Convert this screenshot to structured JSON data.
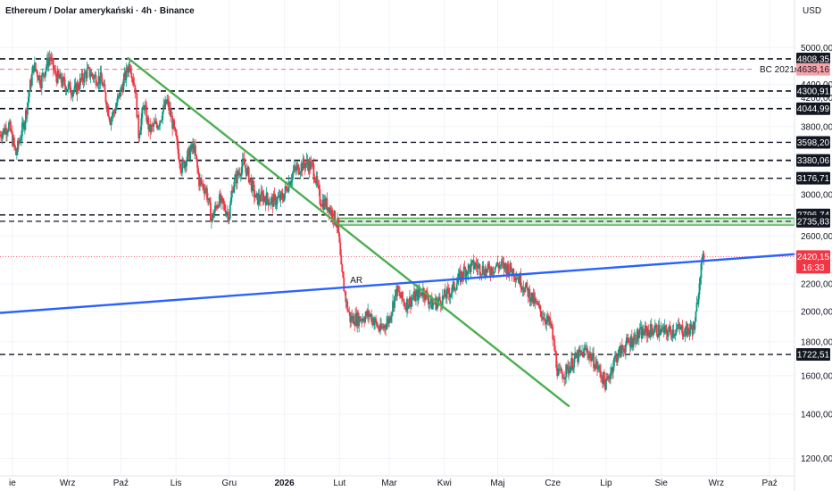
{
  "header": {
    "title": "Ethereum / Dolar amerykański · 4h · Binance",
    "currency": "USD"
  },
  "chart_data": {
    "type": "candlestick",
    "y_scale": "log",
    "ylim": [
      1130,
      5900
    ],
    "xlim": [
      "2025-07-25",
      "2026-10-15"
    ],
    "y_ticks": [
      {
        "value": 5000,
        "label": "5000,00"
      },
      {
        "value": 4400,
        "label": "4400,00"
      },
      {
        "value": 4200,
        "label": "4200,00"
      },
      {
        "value": 3800,
        "label": "3800,00"
      },
      {
        "value": 3000,
        "label": "3000,00"
      },
      {
        "value": 2600,
        "label": "2600,00"
      },
      {
        "value": 2200,
        "label": "2200,00"
      },
      {
        "value": 2000,
        "label": "2000,00"
      },
      {
        "value": 1800,
        "label": "1800,00"
      },
      {
        "value": 1600,
        "label": "1600,00"
      },
      {
        "value": 1400,
        "label": "1400,00"
      },
      {
        "value": 1200,
        "label": "1200,00"
      }
    ],
    "x_ticks": [
      {
        "date": "2025-08-01",
        "label": "ie",
        "bold": false
      },
      {
        "date": "2025-09-01",
        "label": "Wrz",
        "bold": false
      },
      {
        "date": "2025-10-01",
        "label": "Paź",
        "bold": false
      },
      {
        "date": "2025-11-01",
        "label": "Lis",
        "bold": false
      },
      {
        "date": "2025-12-01",
        "label": "Gru",
        "bold": false
      },
      {
        "date": "2026-01-01",
        "label": "2026",
        "bold": true
      },
      {
        "date": "2026-02-01",
        "label": "Lut",
        "bold": false
      },
      {
        "date": "2026-03-01",
        "label": "Mar",
        "bold": false
      },
      {
        "date": "2026-04-01",
        "label": "Kwi",
        "bold": false
      },
      {
        "date": "2026-05-01",
        "label": "Maj",
        "bold": false
      },
      {
        "date": "2026-06-01",
        "label": "Cze",
        "bold": false
      },
      {
        "date": "2026-07-01",
        "label": "Lip",
        "bold": false
      },
      {
        "date": "2026-08-01",
        "label": "Sie",
        "bold": false
      },
      {
        "date": "2026-09-01",
        "label": "Wrz",
        "bold": false
      },
      {
        "date": "2026-10-01",
        "label": "Paź",
        "bold": false
      }
    ],
    "horizontal_levels": [
      {
        "value": 4808.35,
        "label": "4808,35",
        "style": "dashed",
        "weight": 1.6
      },
      {
        "value": 4300.91,
        "label": "4300,91",
        "style": "dashed",
        "weight": 1.6
      },
      {
        "value": 4044.99,
        "label": "4044,99",
        "style": "dashed",
        "weight": 1.6
      },
      {
        "value": 3598.2,
        "label": "3598,20",
        "style": "dashed",
        "weight": 1.4
      },
      {
        "value": 3380.06,
        "label": "3380,06",
        "style": "dashed",
        "weight": 1.8
      },
      {
        "value": 3176.71,
        "label": "3176,71",
        "style": "dashed",
        "weight": 1.4
      },
      {
        "value": 2796.74,
        "label": "2796,74",
        "style": "dashed",
        "weight": 1.6
      },
      {
        "value": 2735.83,
        "label": "2735,83",
        "style": "dashed",
        "weight": 1.2
      },
      {
        "value": 1722.51,
        "label": "1722,51",
        "style": "dashed",
        "weight": 1.4
      }
    ],
    "bc_level": {
      "value": 4638.16,
      "label": "4638,16",
      "name": "BC 2021r",
      "color": "#f06d7a",
      "badge_color": "#f7a1a9"
    },
    "current_price": {
      "value": 2420.15,
      "label": "2420,15",
      "countdown": "16:33",
      "color": "#f23645"
    },
    "zone": {
      "from": 2700,
      "to": 2765,
      "start": "2026-01-31",
      "color": "#4caf50"
    },
    "trendlines": [
      {
        "name": "green-downtrend",
        "color": "#4caf50",
        "points": [
          [
            "2025-10-05",
            4820
          ],
          [
            "2026-06-10",
            1440
          ]
        ]
      },
      {
        "name": "blue-support",
        "color": "#2962ff",
        "points": [
          [
            "2025-07-25",
            1990
          ],
          [
            "2026-10-15",
            2440
          ]
        ]
      }
    ],
    "annotations": [
      {
        "text": "AR",
        "date": "2026-02-05",
        "value": 2195
      }
    ],
    "colors": {
      "up": "#089981",
      "down": "#f23645",
      "grid": "#f0f3fa",
      "axis_text": "#131722"
    },
    "price_path": [
      [
        "2025-07-25",
        3700
      ],
      [
        "2025-07-30",
        3820
      ],
      [
        "2025-08-03",
        3450
      ],
      [
        "2025-08-08",
        3900
      ],
      [
        "2025-08-13",
        4700
      ],
      [
        "2025-08-17",
        4450
      ],
      [
        "2025-08-22",
        4850
      ],
      [
        "2025-08-25",
        4550
      ],
      [
        "2025-08-31",
        4380
      ],
      [
        "2025-09-05",
        4300
      ],
      [
        "2025-09-12",
        4600
      ],
      [
        "2025-09-17",
        4500
      ],
      [
        "2025-09-20",
        4480
      ],
      [
        "2025-09-25",
        3900
      ],
      [
        "2025-09-28",
        4050
      ],
      [
        "2025-10-03",
        4480
      ],
      [
        "2025-10-06",
        4750
      ],
      [
        "2025-10-09",
        4350
      ],
      [
        "2025-10-11",
        3700
      ],
      [
        "2025-10-14",
        4100
      ],
      [
        "2025-10-17",
        3750
      ],
      [
        "2025-10-22",
        3850
      ],
      [
        "2025-10-27",
        4150
      ],
      [
        "2025-10-30",
        3850
      ],
      [
        "2025-11-04",
        3300
      ],
      [
        "2025-11-08",
        3450
      ],
      [
        "2025-11-11",
        3550
      ],
      [
        "2025-11-14",
        3150
      ],
      [
        "2025-11-18",
        3050
      ],
      [
        "2025-11-21",
        2750
      ],
      [
        "2025-11-25",
        2950
      ],
      [
        "2025-12-01",
        2800
      ],
      [
        "2025-12-03",
        3100
      ],
      [
        "2025-12-09",
        3350
      ],
      [
        "2025-12-12",
        3200
      ],
      [
        "2025-12-16",
        2950
      ],
      [
        "2025-12-20",
        2980
      ],
      [
        "2025-12-25",
        2930
      ],
      [
        "2025-12-31",
        2970
      ],
      [
        "2026-01-06",
        3250
      ],
      [
        "2026-01-13",
        3350
      ],
      [
        "2026-01-17",
        3300
      ],
      [
        "2026-01-21",
        2950
      ],
      [
        "2026-01-26",
        2880
      ],
      [
        "2026-01-31",
        2700
      ],
      [
        "2026-02-02",
        2300
      ],
      [
        "2026-02-05",
        2050
      ],
      [
        "2026-02-07",
        1950
      ],
      [
        "2026-02-12",
        1950
      ],
      [
        "2026-02-18",
        1980
      ],
      [
        "2026-02-24",
        1870
      ],
      [
        "2026-03-01",
        1950
      ],
      [
        "2026-03-05",
        2150
      ],
      [
        "2026-03-10",
        2050
      ],
      [
        "2026-03-15",
        2100
      ],
      [
        "2026-03-20",
        2150
      ],
      [
        "2026-03-25",
        2050
      ],
      [
        "2026-03-30",
        2080
      ],
      [
        "2026-04-05",
        2150
      ],
      [
        "2026-04-12",
        2300
      ],
      [
        "2026-04-18",
        2350
      ],
      [
        "2026-04-25",
        2300
      ],
      [
        "2026-05-01",
        2350
      ],
      [
        "2026-05-06",
        2330
      ],
      [
        "2026-05-10",
        2300
      ],
      [
        "2026-05-15",
        2200
      ],
      [
        "2026-05-20",
        2100
      ],
      [
        "2026-05-25",
        2000
      ],
      [
        "2026-05-31",
        1900
      ],
      [
        "2026-06-04",
        1600
      ],
      [
        "2026-06-08",
        1620
      ],
      [
        "2026-06-14",
        1700
      ],
      [
        "2026-06-20",
        1750
      ],
      [
        "2026-06-26",
        1650
      ],
      [
        "2026-07-01",
        1550
      ],
      [
        "2026-07-06",
        1700
      ],
      [
        "2026-07-12",
        1780
      ],
      [
        "2026-07-20",
        1850
      ],
      [
        "2026-07-28",
        1880
      ],
      [
        "2026-08-04",
        1860
      ],
      [
        "2026-08-10",
        1880
      ],
      [
        "2026-08-16",
        1870
      ],
      [
        "2026-08-20",
        1900
      ],
      [
        "2026-08-23",
        2300
      ],
      [
        "2026-08-25",
        2420
      ]
    ]
  }
}
